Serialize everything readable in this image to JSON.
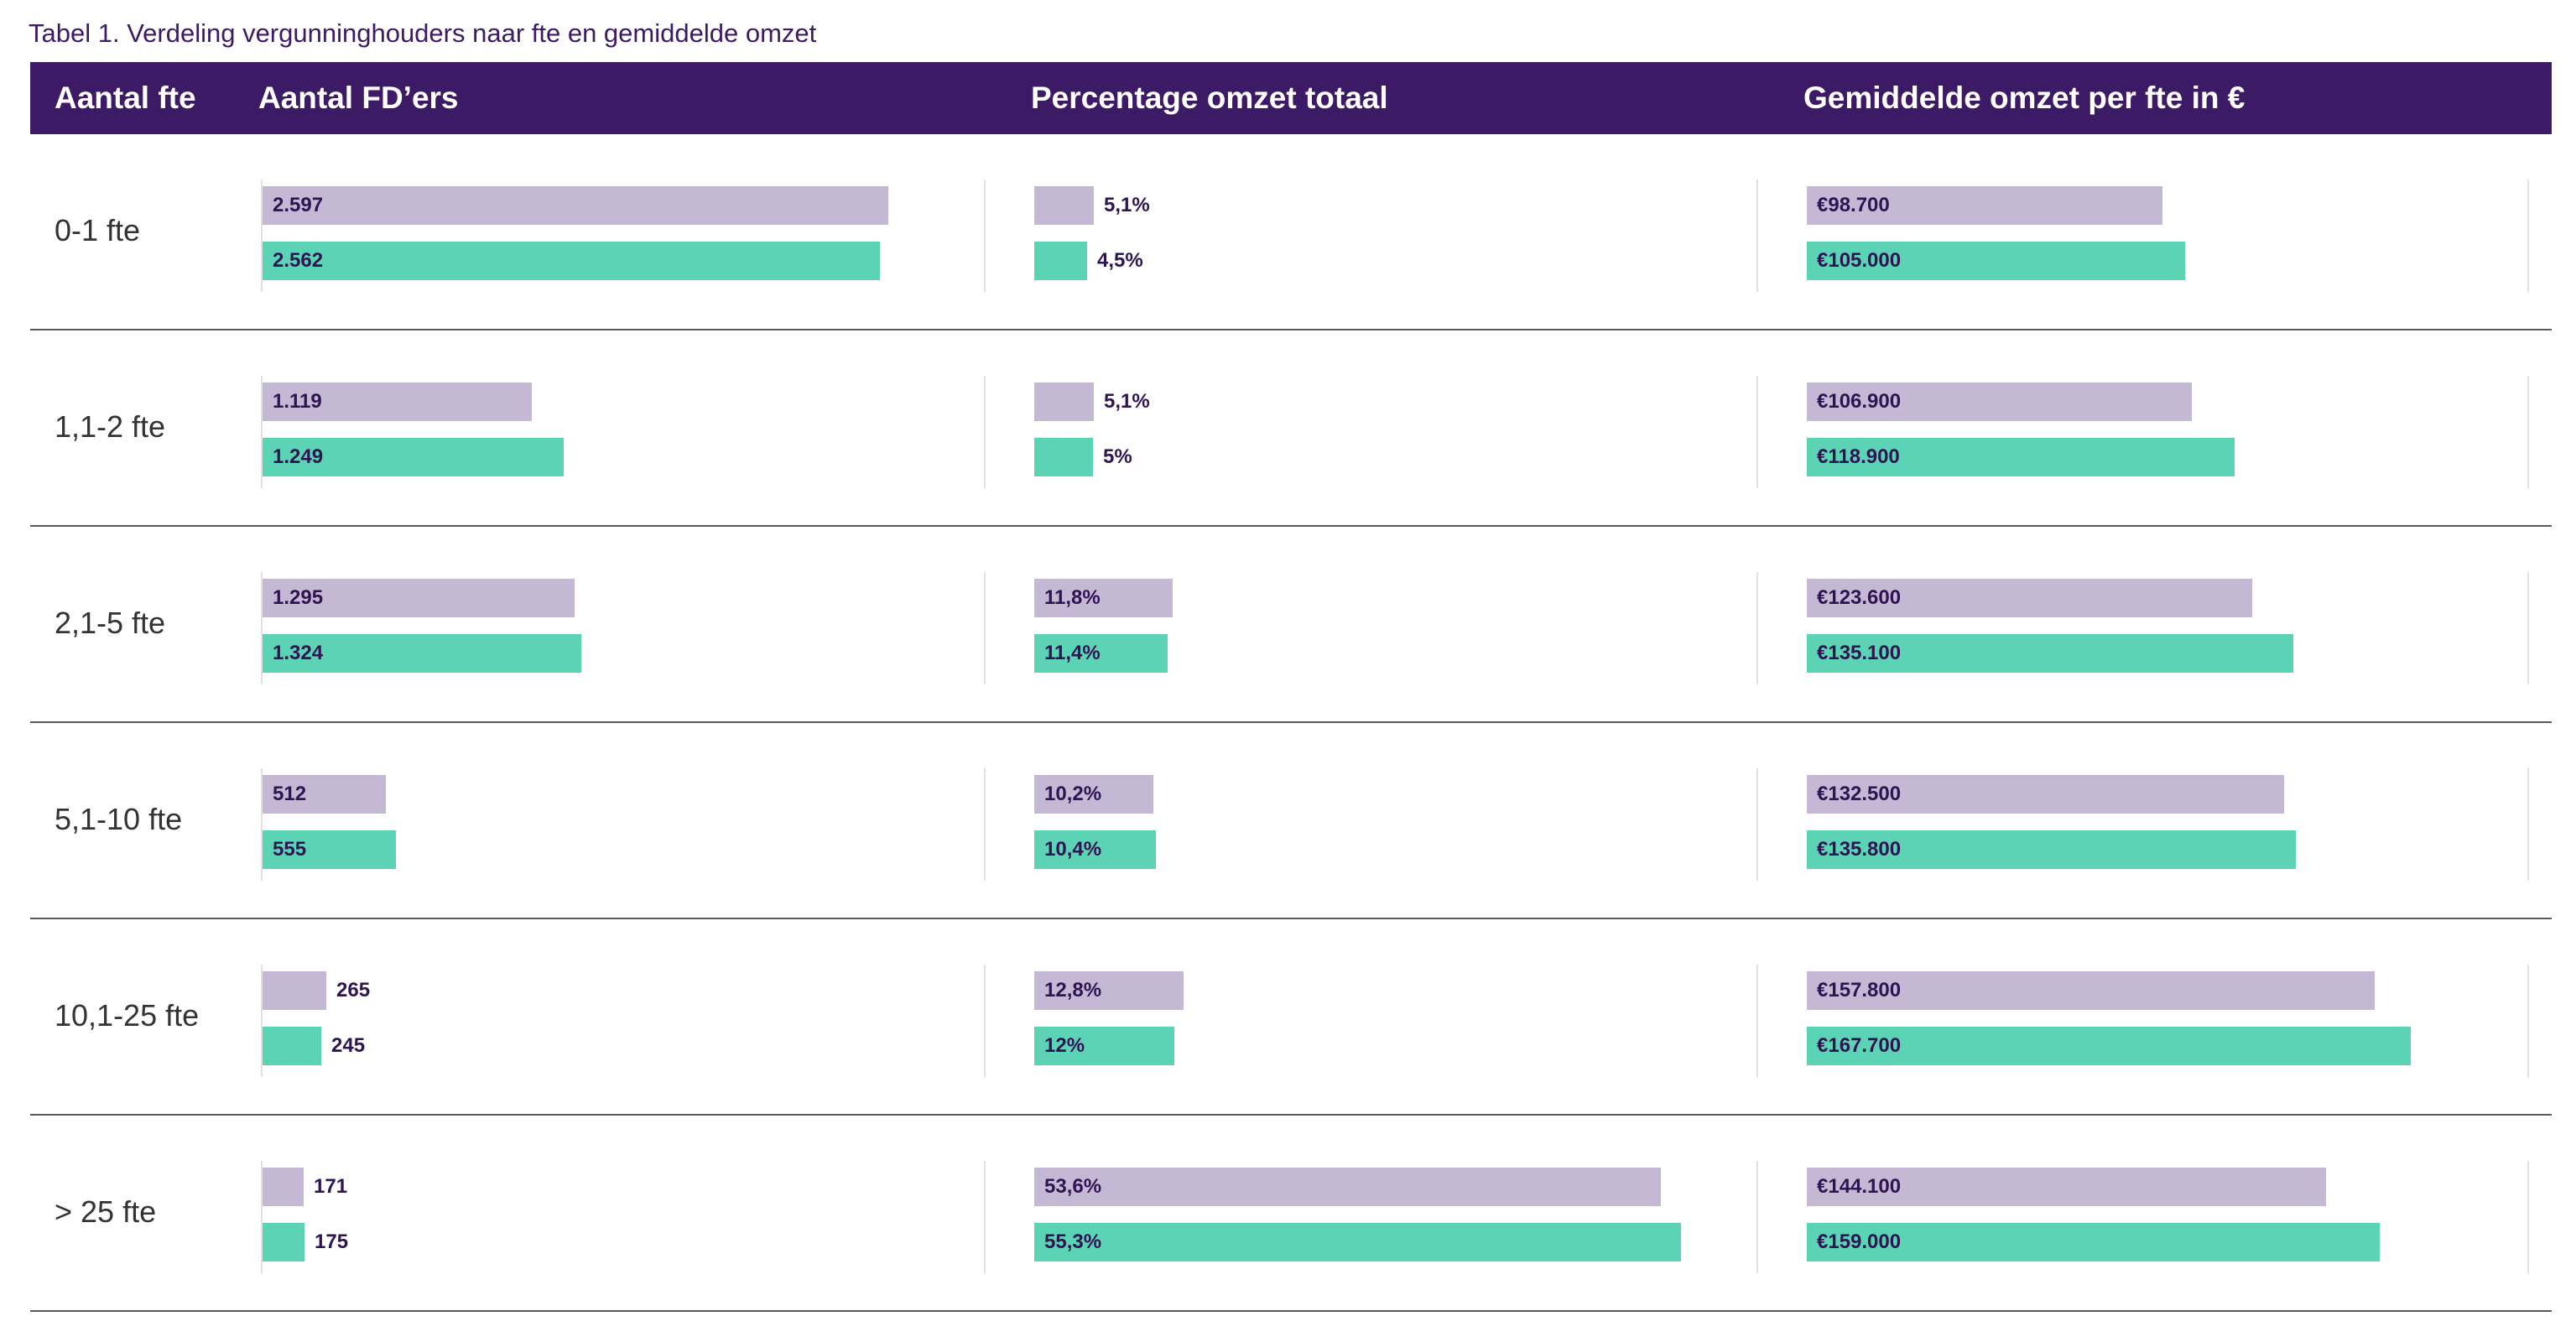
{
  "caption": "Tabel 1. Verdeling vergunninghouders naar fte en gemiddelde omzet",
  "header": {
    "col_fte": "Aantal fte",
    "col_fd": "Aantal FD’ers",
    "col_pct": "Percentage omzet totaal",
    "col_avg": "Gemiddelde omzet per fte in €"
  },
  "colors": {
    "header_bg": "#3d1a66",
    "series_previous": "#c4b8d4",
    "series_current": "#5dd3b5",
    "label_text": "#2e1452"
  },
  "chart_data": {
    "type": "bar",
    "orientation": "horizontal",
    "categories": [
      "0-1 fte",
      "1,1-2 fte",
      "2,1-5 fte",
      "5,1-10 fte",
      "10,1-25 fte",
      "> 25 fte"
    ],
    "panels": [
      {
        "key": "fd",
        "series": [
          {
            "values": [
              2597,
              1119,
              1295,
              512,
              265,
              171
            ],
            "labels": [
              "2.597",
              "1.119",
              "1.295",
              "512",
              "265",
              "171"
            ]
          },
          {
            "values": [
              2562,
              1249,
              1324,
              555,
              245,
              175
            ],
            "labels": [
              "2.562",
              "1.249",
              "1.324",
              "555",
              "245",
              "175"
            ]
          }
        ]
      },
      {
        "key": "pct",
        "series": [
          {
            "values": [
              5.1,
              5.1,
              11.8,
              10.2,
              12.8,
              53.6
            ],
            "labels": [
              "5,1%",
              "5,1%",
              "11,8%",
              "10,2%",
              "12,8%",
              "53,6%"
            ]
          },
          {
            "values": [
              4.5,
              5.0,
              11.4,
              10.4,
              12.0,
              55.3
            ],
            "labels": [
              "4,5%",
              "5%",
              "11,4%",
              "10,4%",
              "12%",
              "55,3%"
            ]
          }
        ]
      },
      {
        "key": "avg",
        "series": [
          {
            "values": [
              98700,
              106900,
              123600,
              132500,
              157800,
              144100
            ],
            "labels": [
              "€98.700",
              "€106.900",
              "€123.600",
              "€132.500",
              "€157.800",
              "€144.100"
            ]
          },
          {
            "values": [
              105000,
              118900,
              135100,
              135800,
              167700,
              159000
            ],
            "labels": [
              "€105.000",
              "€118.900",
              "€135.100",
              "€135.800",
              "€167.700",
              "€159.000"
            ]
          }
        ]
      }
    ]
  }
}
